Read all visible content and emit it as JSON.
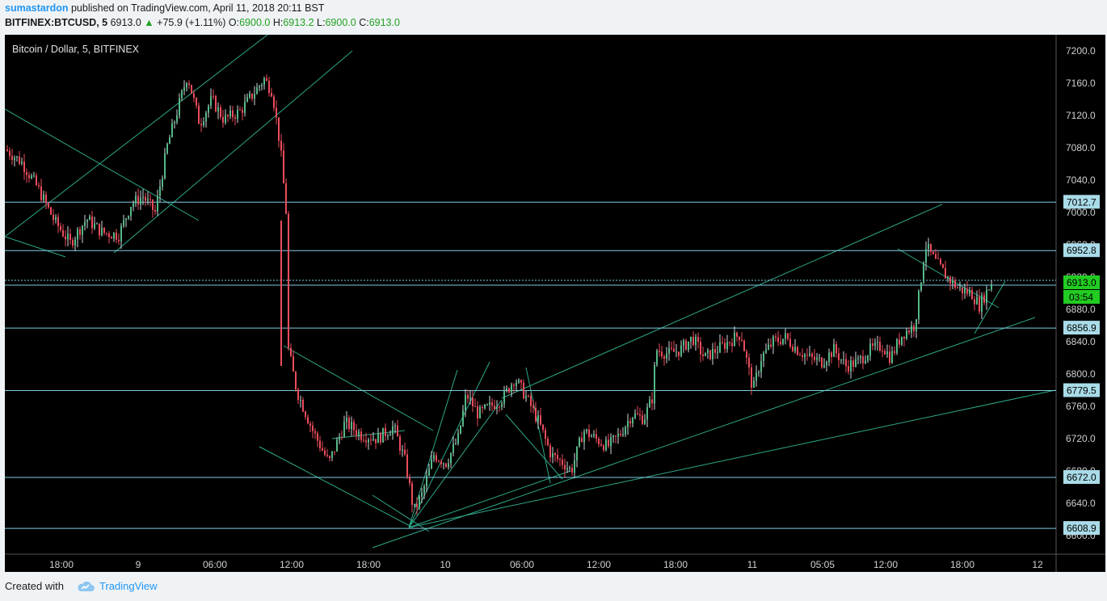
{
  "header": {
    "username": "sumastardon",
    "published_text": "published on TradingView.com, April 11, 2018 20:11 BST",
    "symbol": "BITFINEX:BTCUSD, 5",
    "last_price": "6913.0",
    "change": "+75.9 (+1.11%)",
    "o_label": "O:",
    "o_value": "6900.0",
    "h_label": "H:",
    "h_value": "6913.2",
    "l_label": "L:",
    "l_value": "6900.0",
    "c_label": "C:",
    "c_value": "6913.0"
  },
  "chart_title": "Bitcoin / Dollar, 5, BITFINEX",
  "footer": {
    "created_with": "Created with",
    "brand": "TradingView"
  },
  "colors": {
    "background": "#000000",
    "up_candle": "#53b987",
    "down_candle": "#eb4d5c",
    "trendline": "#2ea88a",
    "level_line": "#7fcde0",
    "price_tag_bg": "#a9dbe8",
    "current_price_bg": "#22cc22",
    "axis_text": "#d0d0d0"
  },
  "chart_data": {
    "type": "candlestick",
    "symbol": "BITFINEX:BTCUSD",
    "timeframe": "5",
    "ylim": [
      6580,
      7220
    ],
    "y_ticks": [
      "7200.0",
      "7160.0",
      "7120.0",
      "7080.0",
      "7040.0",
      "7000.0",
      "6960.0",
      "6920.0",
      "6880.0",
      "6840.0",
      "6800.0",
      "6760.0",
      "6720.0",
      "6680.0",
      "6640.0",
      "6600.0"
    ],
    "x_ticks": [
      "18:00",
      "9",
      "06:00",
      "12:00",
      "18:00",
      "10",
      "06:00",
      "12:00",
      "18:00",
      "11",
      "05:05",
      "12:00",
      "18:00",
      "12"
    ],
    "price_path": [
      [
        0,
        7078
      ],
      [
        20,
        7062
      ],
      [
        40,
        7030
      ],
      [
        60,
        6990
      ],
      [
        80,
        6962
      ],
      [
        100,
        6992
      ],
      [
        120,
        6975
      ],
      [
        140,
        6972
      ],
      [
        155,
        7010
      ],
      [
        170,
        7020
      ],
      [
        185,
        7000
      ],
      [
        200,
        7082
      ],
      [
        215,
        7135
      ],
      [
        225,
        7170
      ],
      [
        240,
        7110
      ],
      [
        255,
        7140
      ],
      [
        270,
        7115
      ],
      [
        290,
        7125
      ],
      [
        305,
        7145
      ],
      [
        320,
        7165
      ],
      [
        330,
        7150
      ],
      [
        340,
        7080
      ],
      [
        348,
        6990
      ],
      [
        350,
        6830
      ],
      [
        360,
        6780
      ],
      [
        380,
        6730
      ],
      [
        400,
        6690
      ],
      [
        420,
        6740
      ],
      [
        440,
        6725
      ],
      [
        460,
        6720
      ],
      [
        480,
        6735
      ],
      [
        495,
        6690
      ],
      [
        505,
        6630
      ],
      [
        515,
        6650
      ],
      [
        530,
        6700
      ],
      [
        545,
        6690
      ],
      [
        560,
        6720
      ],
      [
        570,
        6775
      ],
      [
        585,
        6750
      ],
      [
        600,
        6760
      ],
      [
        615,
        6770
      ],
      [
        630,
        6795
      ],
      [
        645,
        6770
      ],
      [
        660,
        6740
      ],
      [
        675,
        6700
      ],
      [
        690,
        6690
      ],
      [
        700,
        6680
      ],
      [
        715,
        6730
      ],
      [
        730,
        6720
      ],
      [
        745,
        6710
      ],
      [
        760,
        6725
      ],
      [
        775,
        6750
      ],
      [
        790,
        6745
      ],
      [
        800,
        6770
      ],
      [
        805,
        6830
      ],
      [
        820,
        6825
      ],
      [
        835,
        6830
      ],
      [
        850,
        6845
      ],
      [
        865,
        6820
      ],
      [
        880,
        6830
      ],
      [
        895,
        6840
      ],
      [
        910,
        6850
      ],
      [
        925,
        6780
      ],
      [
        935,
        6820
      ],
      [
        950,
        6840
      ],
      [
        965,
        6845
      ],
      [
        980,
        6830
      ],
      [
        995,
        6820
      ],
      [
        1010,
        6815
      ],
      [
        1025,
        6830
      ],
      [
        1040,
        6810
      ],
      [
        1055,
        6815
      ],
      [
        1070,
        6830
      ],
      [
        1085,
        6835
      ],
      [
        1095,
        6820
      ],
      [
        1110,
        6850
      ],
      [
        1125,
        6860
      ],
      [
        1132,
        6910
      ],
      [
        1138,
        6960
      ],
      [
        1150,
        6940
      ],
      [
        1165,
        6920
      ],
      [
        1180,
        6905
      ],
      [
        1195,
        6900
      ],
      [
        1205,
        6885
      ],
      [
        1220,
        6913
      ]
    ],
    "levels": [
      {
        "label": "7012.7",
        "value": 7012.7
      },
      {
        "label": "6952.8",
        "value": 6952.8
      },
      {
        "label": "6913.0",
        "value": 6913.0,
        "current": true
      },
      {
        "label": "6856.9",
        "value": 6856.9
      },
      {
        "label": "6779.5",
        "value": 6779.5
      },
      {
        "label": "6672.0",
        "value": 6672.0
      },
      {
        "label": "6608.9",
        "value": 6608.9
      }
    ],
    "current_price": "6913.0",
    "countdown": "03:54"
  }
}
